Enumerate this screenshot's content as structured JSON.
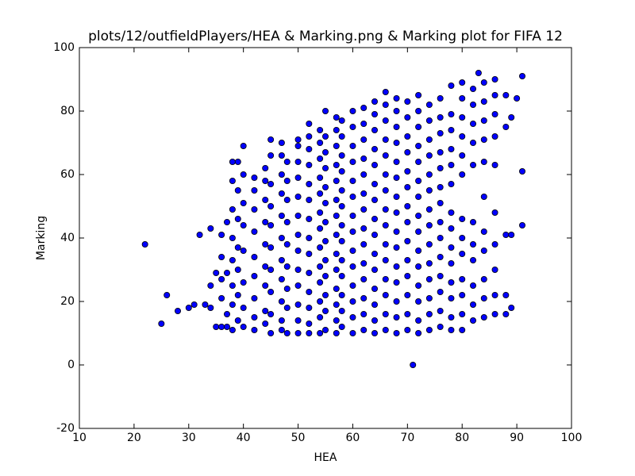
{
  "chart_data": {
    "type": "scatter",
    "title": "plots/12/outfieldPlayers/HEA & Marking.png & Marking plot for FIFA 12",
    "x_label": "HEA",
    "y_label": "Marking",
    "color": "#0000ff",
    "grid": false,
    "xlim": [
      10,
      100
    ],
    "ylim": [
      -20,
      100
    ],
    "xticks": [
      10,
      20,
      30,
      40,
      50,
      60,
      70,
      80,
      90,
      100
    ],
    "yticks": [
      -20,
      0,
      20,
      40,
      60,
      80,
      100
    ],
    "x": [
      22,
      25,
      26,
      28,
      30,
      31,
      32,
      33,
      34,
      34,
      34,
      35,
      35,
      71,
      91,
      91,
      91,
      83,
      36,
      36,
      36,
      36,
      36,
      37,
      37,
      37,
      37,
      38,
      38,
      38,
      38,
      38,
      38,
      38,
      38,
      39,
      39,
      39,
      39,
      39,
      39,
      39,
      40,
      40,
      40,
      40,
      40,
      40,
      40,
      40,
      42,
      42,
      42,
      42,
      42,
      42,
      42,
      42,
      42,
      44,
      44,
      44,
      44,
      44,
      44,
      44,
      44,
      44,
      45,
      45,
      45,
      45,
      45,
      45,
      45,
      45,
      45,
      45,
      47,
      47,
      47,
      47,
      47,
      47,
      47,
      47,
      47,
      47,
      47,
      48,
      48,
      48,
      48,
      48,
      48,
      48,
      48,
      48,
      50,
      50,
      50,
      50,
      50,
      50,
      50,
      50,
      50,
      50,
      50,
      50,
      50,
      52,
      52,
      52,
      52,
      52,
      52,
      52,
      52,
      52,
      52,
      52,
      52,
      52,
      52,
      54,
      54,
      54,
      54,
      54,
      54,
      54,
      54,
      54,
      54,
      54,
      54,
      54,
      55,
      55,
      55,
      55,
      55,
      55,
      55,
      55,
      55,
      55,
      55,
      55,
      55,
      57,
      57,
      57,
      57,
      57,
      57,
      57,
      57,
      57,
      57,
      57,
      57,
      57,
      57,
      58,
      58,
      58,
      58,
      58,
      58,
      58,
      58,
      58,
      58,
      58,
      58,
      58,
      60,
      60,
      60,
      60,
      60,
      60,
      60,
      60,
      60,
      60,
      60,
      60,
      60,
      60,
      62,
      62,
      62,
      62,
      62,
      62,
      62,
      62,
      62,
      62,
      62,
      62,
      62,
      62,
      64,
      64,
      64,
      64,
      64,
      64,
      64,
      64,
      64,
      64,
      64,
      64,
      64,
      64,
      64,
      66,
      66,
      66,
      66,
      66,
      66,
      66,
      66,
      66,
      66,
      66,
      66,
      66,
      66,
      66,
      68,
      68,
      68,
      68,
      68,
      68,
      68,
      68,
      68,
      68,
      68,
      68,
      68,
      68,
      68,
      70,
      70,
      70,
      70,
      70,
      70,
      70,
      70,
      70,
      70,
      70,
      70,
      70,
      70,
      72,
      72,
      72,
      72,
      72,
      72,
      72,
      72,
      72,
      72,
      72,
      72,
      72,
      72,
      72,
      74,
      74,
      74,
      74,
      74,
      74,
      74,
      74,
      74,
      74,
      74,
      74,
      74,
      74,
      76,
      76,
      76,
      76,
      76,
      76,
      76,
      76,
      76,
      76,
      76,
      76,
      76,
      76,
      78,
      78,
      78,
      78,
      78,
      78,
      78,
      78,
      78,
      78,
      78,
      78,
      78,
      78,
      80,
      80,
      80,
      80,
      80,
      80,
      80,
      80,
      80,
      80,
      80,
      80,
      80,
      82,
      82,
      82,
      82,
      82,
      82,
      82,
      82,
      82,
      82,
      82,
      84,
      84,
      84,
      84,
      84,
      84,
      84,
      84,
      84,
      84,
      84,
      86,
      86,
      86,
      86,
      86,
      86,
      86,
      86,
      86,
      86,
      88,
      88,
      88,
      88,
      88,
      89,
      89,
      89,
      90
    ],
    "values": [
      38,
      13,
      22,
      17,
      18,
      19,
      41,
      19,
      43,
      18,
      25,
      12,
      29,
      0,
      91,
      61,
      44,
      92,
      12,
      21,
      27,
      34,
      41,
      12,
      16,
      29,
      45,
      11,
      19,
      25,
      33,
      40,
      49,
      58,
      64,
      14,
      22,
      30,
      37,
      46,
      55,
      64,
      12,
      18,
      26,
      36,
      44,
      51,
      60,
      69,
      11,
      15,
      21,
      28,
      34,
      42,
      49,
      55,
      59,
      13,
      17,
      25,
      31,
      38,
      45,
      52,
      58,
      62,
      10,
      16,
      23,
      30,
      37,
      44,
      50,
      57,
      66,
      71,
      11,
      14,
      20,
      27,
      33,
      40,
      47,
      54,
      60,
      66,
      70,
      10,
      18,
      24,
      31,
      38,
      45,
      52,
      58,
      64,
      10,
      14,
      19,
      25,
      30,
      36,
      41,
      47,
      53,
      59,
      64,
      69,
      71,
      10,
      13,
      18,
      23,
      29,
      35,
      40,
      46,
      52,
      57,
      63,
      68,
      72,
      76,
      10,
      15,
      20,
      26,
      31,
      37,
      43,
      48,
      54,
      59,
      65,
      70,
      74,
      11,
      17,
      22,
      28,
      33,
      39,
      45,
      51,
      56,
      62,
      67,
      72,
      80,
      10,
      14,
      19,
      24,
      30,
      35,
      41,
      47,
      52,
      58,
      63,
      69,
      74,
      78,
      12,
      17,
      22,
      28,
      33,
      39,
      44,
      50,
      55,
      61,
      66,
      72,
      77,
      10,
      15,
      20,
      25,
      31,
      36,
      42,
      47,
      53,
      58,
      64,
      69,
      75,
      80,
      11,
      16,
      21,
      27,
      32,
      38,
      43,
      49,
      54,
      60,
      65,
      71,
      76,
      81,
      10,
      14,
      19,
      24,
      30,
      35,
      41,
      46,
      52,
      57,
      63,
      68,
      74,
      79,
      83,
      11,
      16,
      22,
      27,
      33,
      38,
      44,
      49,
      55,
      60,
      66,
      71,
      77,
      82,
      86,
      10,
      15,
      20,
      26,
      31,
      37,
      42,
      48,
      53,
      59,
      64,
      70,
      75,
      80,
      84,
      11,
      16,
      22,
      28,
      33,
      39,
      45,
      50,
      56,
      61,
      67,
      72,
      78,
      83,
      10,
      14,
      20,
      25,
      31,
      36,
      42,
      47,
      53,
      58,
      64,
      69,
      75,
      80,
      85,
      11,
      16,
      21,
      27,
      32,
      38,
      44,
      49,
      55,
      60,
      66,
      71,
      77,
      82,
      12,
      17,
      23,
      28,
      34,
      40,
      45,
      51,
      56,
      62,
      67,
      73,
      78,
      84,
      11,
      15,
      21,
      26,
      32,
      37,
      43,
      48,
      57,
      63,
      68,
      74,
      79,
      88,
      11,
      16,
      22,
      27,
      35,
      40,
      46,
      60,
      66,
      72,
      78,
      84,
      89,
      14,
      19,
      25,
      33,
      38,
      45,
      63,
      70,
      76,
      82,
      87,
      15,
      21,
      27,
      36,
      42,
      53,
      64,
      71,
      77,
      83,
      89,
      16,
      22,
      30,
      38,
      48,
      63,
      72,
      79,
      85,
      90,
      16,
      22,
      41,
      75,
      85,
      18,
      41,
      78,
      84
    ]
  }
}
